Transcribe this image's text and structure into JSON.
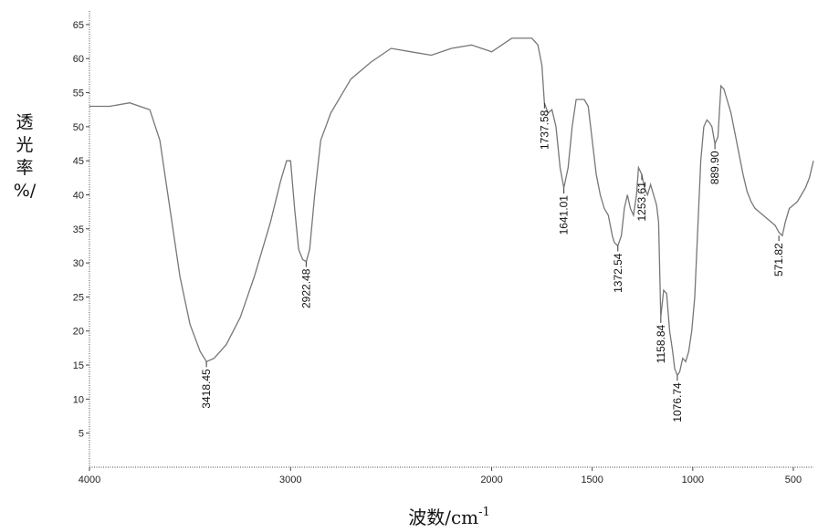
{
  "chart_data": {
    "type": "line",
    "title": "",
    "xlabel": "波数/cm",
    "xlabel_sup": "-1",
    "ylabel_chars": [
      "透",
      "光",
      "率",
      "%/"
    ],
    "xlim": [
      4000,
      400
    ],
    "ylim": [
      0,
      67
    ],
    "x_ticks": [
      4000,
      3000,
      2000,
      1500,
      1000,
      500
    ],
    "x_tick_labels": [
      "4000",
      "3000",
      "2000",
      "1500",
      "1000",
      "500"
    ],
    "y_ticks": [
      5,
      10,
      15,
      20,
      25,
      30,
      35,
      40,
      45,
      50,
      55,
      60,
      65
    ],
    "y_tick_labels": [
      "5",
      "10",
      "15",
      "20",
      "25",
      "30",
      "35",
      "40",
      "45",
      "50",
      "55",
      "60",
      "65"
    ],
    "grid": false,
    "series": [
      {
        "color": "#777777",
        "x": [
          4000,
          3900,
          3800,
          3700,
          3650,
          3600,
          3550,
          3500,
          3450,
          3418,
          3380,
          3320,
          3250,
          3180,
          3100,
          3050,
          3020,
          3000,
          2980,
          2960,
          2940,
          2922,
          2905,
          2880,
          2850,
          2800,
          2700,
          2600,
          2500,
          2400,
          2300,
          2200,
          2100,
          2050,
          2000,
          1950,
          1900,
          1850,
          1800,
          1770,
          1750,
          1738,
          1720,
          1700,
          1680,
          1660,
          1641,
          1620,
          1600,
          1580,
          1560,
          1540,
          1520,
          1500,
          1480,
          1460,
          1440,
          1420,
          1400,
          1390,
          1373,
          1355,
          1340,
          1325,
          1310,
          1295,
          1280,
          1270,
          1254,
          1240,
          1225,
          1210,
          1195,
          1180,
          1170,
          1159,
          1145,
          1130,
          1115,
          1100,
          1090,
          1077,
          1065,
          1050,
          1035,
          1020,
          1005,
          990,
          975,
          960,
          945,
          930,
          915,
          905,
          890,
          875,
          860,
          845,
          830,
          810,
          790,
          770,
          750,
          730,
          710,
          690,
          670,
          650,
          630,
          610,
          590,
          572,
          555,
          540,
          520,
          500,
          480,
          460,
          440,
          420,
          400
        ],
        "y": [
          53,
          53,
          53.5,
          52.5,
          48,
          38,
          28,
          21,
          17,
          15.5,
          16,
          18,
          22,
          28,
          36,
          42,
          45,
          45,
          38,
          32,
          30.5,
          30.2,
          32,
          40,
          48,
          52,
          57,
          59.5,
          61.5,
          61,
          60.5,
          61.5,
          62,
          61.5,
          61,
          62,
          63,
          63,
          63,
          62,
          59,
          53.5,
          52,
          52.5,
          50,
          44,
          41,
          44,
          50,
          54,
          54,
          54,
          53,
          48,
          43,
          40,
          38,
          37,
          34,
          33,
          32.5,
          34,
          38,
          40,
          38,
          37,
          40,
          44,
          43,
          41,
          40,
          41.5,
          40,
          38.5,
          36,
          22,
          26,
          25.5,
          20,
          17,
          14.5,
          13.5,
          14,
          16,
          15.5,
          17,
          20,
          25,
          35,
          45,
          50,
          51,
          50.5,
          50,
          47.5,
          48.5,
          56,
          55.5,
          54,
          52,
          49,
          46,
          43,
          40.5,
          39,
          38,
          37.5,
          37,
          36.5,
          36,
          35.5,
          34.5,
          34,
          36,
          38,
          38.5,
          39,
          40,
          41,
          42.5,
          45
        ]
      }
    ],
    "peaks": [
      {
        "x": 3418.45,
        "y": 15.5,
        "label": "3418.45"
      },
      {
        "x": 2922.48,
        "y": 30.2,
        "label": "2922.48"
      },
      {
        "x": 1737.58,
        "y": 53.5,
        "label": "1737.58"
      },
      {
        "x": 1641.01,
        "y": 41,
        "label": "1641.01"
      },
      {
        "x": 1372.54,
        "y": 32.5,
        "label": "1372.54"
      },
      {
        "x": 1253.61,
        "y": 43,
        "label": "1253.61"
      },
      {
        "x": 1158.84,
        "y": 22,
        "label": "1158.84"
      },
      {
        "x": 1076.74,
        "y": 13.5,
        "label": "1076.74"
      },
      {
        "x": 889.9,
        "y": 47.5,
        "label": "889.90"
      },
      {
        "x": 571.82,
        "y": 34,
        "label": "571.82"
      }
    ]
  }
}
